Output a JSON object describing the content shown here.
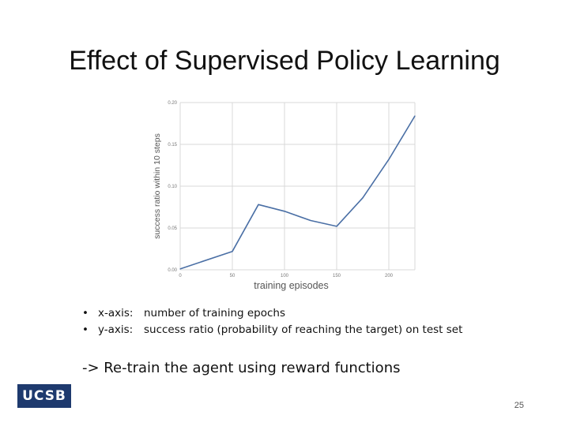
{
  "slide": {
    "title": "Effect of Supervised Policy Learning",
    "bullets": [
      {
        "key": "x-axis:",
        "text": "number of training epochs"
      },
      {
        "key": "y-axis:",
        "text": "success ratio (probability of reaching the target) on test set"
      }
    ],
    "conclusion": "-> Re-train the agent using reward functions",
    "logo_text": "UCSB",
    "page_number": "25"
  },
  "colors": {
    "line": "#4a6fa5",
    "grid": "#d9d9d9",
    "logo_bg": "#1e3a6e"
  },
  "chart_data": {
    "type": "line",
    "xlabel": "training episodes",
    "ylabel": "success ratio within 10 steps",
    "xlim": [
      0,
      225
    ],
    "ylim": [
      0,
      0.2
    ],
    "x_ticks": [
      0,
      50,
      100,
      150,
      200
    ],
    "x_tick_labels": [
      "0",
      "50",
      "100",
      "150",
      "200"
    ],
    "y_ticks": [
      0,
      0.05,
      0.1,
      0.15,
      0.2
    ],
    "y_tick_labels": [
      "0.00",
      "0.05",
      "0.10",
      "0.15",
      "0.20"
    ],
    "grid": true,
    "series": [
      {
        "x": [
          0,
          50,
          75,
          100,
          125,
          150,
          175,
          200,
          225
        ],
        "y": [
          0.001,
          0.022,
          0.078,
          0.07,
          0.059,
          0.052,
          0.086,
          0.132,
          0.184
        ]
      }
    ]
  }
}
